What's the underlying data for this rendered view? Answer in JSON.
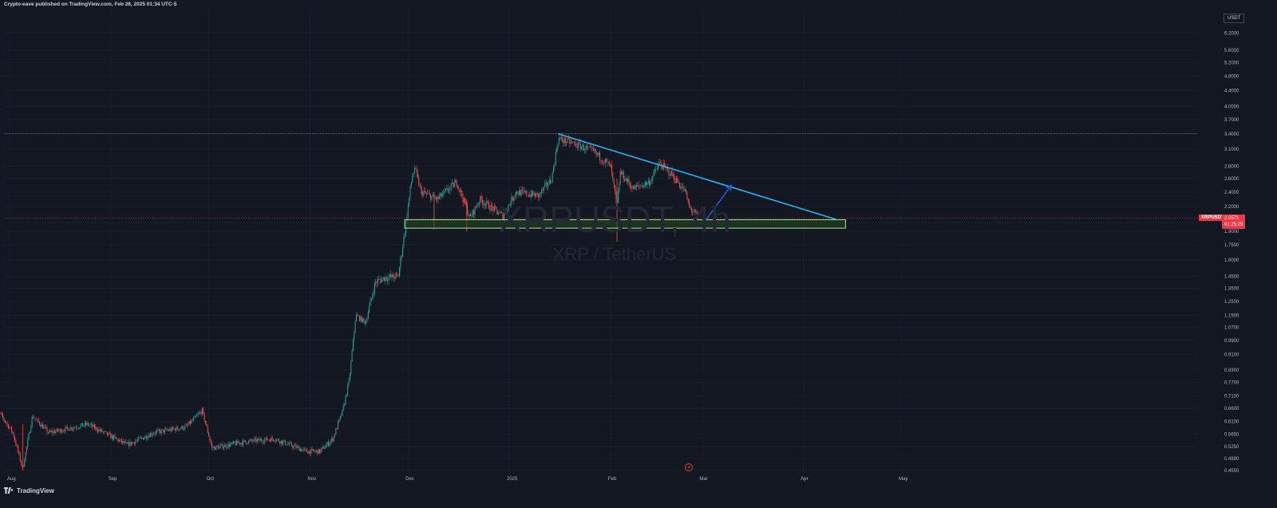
{
  "header": {
    "published_text": "Crypto-eave published on TradingView.com, Feb 28, 2025 01:34 UTC-5"
  },
  "watermark": {
    "symbol": "XRPUSDT, 4h",
    "name": "XRP / TetherUS"
  },
  "axis_unit": "USDT",
  "price_label": {
    "symbol": "XRPUSDT",
    "price": "2.0571",
    "countdown": "01:25:29"
  },
  "footer": {
    "brand": "TradingView"
  },
  "colors": {
    "background": "#131722",
    "grid": "#1e2230",
    "up": "#26a69a",
    "down": "#ef5350",
    "trendline": "#29b6f6",
    "arrow": "#2962ff",
    "zone_fill": "#1f4a1f",
    "zone_border": "#b5e48c",
    "current_price_line": "#f23645"
  },
  "icons": [
    "tradingview-logo-icon",
    "lightning-icon"
  ],
  "chart_data": {
    "type": "candlestick",
    "title": "XRPUSDT, 4h",
    "subtitle": "XRP / TetherUS",
    "interval": "4h",
    "y_scale": "log",
    "ylim": [
      0.455,
      6.4
    ],
    "x_ticks": [
      "Aug",
      "Sep",
      "Oct",
      "Nov",
      "Dec",
      "2025",
      "Feb",
      "Mar",
      "Apr",
      "May"
    ],
    "y_ticks": [
      "6.2000",
      "5.6000",
      "5.2000",
      "4.8000",
      "4.4000",
      "4.0000",
      "3.7000",
      "3.4000",
      "3.1000",
      "2.8000",
      "2.6000",
      "2.4000",
      "2.2000",
      "2.0000",
      "1.9000",
      "1.7500",
      "1.6000",
      "1.4500",
      "1.3500",
      "1.2500",
      "1.1500",
      "1.0700",
      "0.9900",
      "0.9100",
      "0.8300",
      "0.7700",
      "0.7100",
      "0.6600",
      "0.6100",
      "0.5650",
      "0.5250",
      "0.4890",
      "0.4550"
    ],
    "price_path": [
      {
        "date": "2024-07-27",
        "price": 0.6
      },
      {
        "date": "2024-07-29",
        "price": 0.64
      },
      {
        "date": "2024-08-02",
        "price": 0.57
      },
      {
        "date": "2024-08-05",
        "price": 0.46
      },
      {
        "date": "2024-08-08",
        "price": 0.63
      },
      {
        "date": "2024-08-13",
        "price": 0.57
      },
      {
        "date": "2024-08-25",
        "price": 0.6
      },
      {
        "date": "2024-09-06",
        "price": 0.53
      },
      {
        "date": "2024-09-14",
        "price": 0.57
      },
      {
        "date": "2024-09-24",
        "price": 0.59
      },
      {
        "date": "2024-09-29",
        "price": 0.65
      },
      {
        "date": "2024-10-02",
        "price": 0.52
      },
      {
        "date": "2024-10-12",
        "price": 0.54
      },
      {
        "date": "2024-10-21",
        "price": 0.55
      },
      {
        "date": "2024-10-31",
        "price": 0.51
      },
      {
        "date": "2024-11-04",
        "price": 0.51
      },
      {
        "date": "2024-11-08",
        "price": 0.55
      },
      {
        "date": "2024-11-11",
        "price": 0.65
      },
      {
        "date": "2024-11-13",
        "price": 0.78
      },
      {
        "date": "2024-11-15",
        "price": 1.15
      },
      {
        "date": "2024-11-18",
        "price": 1.1
      },
      {
        "date": "2024-11-21",
        "price": 1.4
      },
      {
        "date": "2024-11-24",
        "price": 1.44
      },
      {
        "date": "2024-11-28",
        "price": 1.45
      },
      {
        "date": "2024-11-30",
        "price": 1.9
      },
      {
        "date": "2024-12-02",
        "price": 2.55
      },
      {
        "date": "2024-12-03",
        "price": 2.78
      },
      {
        "date": "2024-12-05",
        "price": 2.4
      },
      {
        "date": "2024-12-10",
        "price": 2.3
      },
      {
        "date": "2024-12-16",
        "price": 2.55
      },
      {
        "date": "2024-12-20",
        "price": 2.05
      },
      {
        "date": "2024-12-23",
        "price": 2.3
      },
      {
        "date": "2024-12-30",
        "price": 2.08
      },
      {
        "date": "2025-01-03",
        "price": 2.4
      },
      {
        "date": "2025-01-10",
        "price": 2.35
      },
      {
        "date": "2025-01-14",
        "price": 2.6
      },
      {
        "date": "2025-01-16",
        "price": 3.3
      },
      {
        "date": "2025-01-21",
        "price": 3.2
      },
      {
        "date": "2025-01-27",
        "price": 3.05
      },
      {
        "date": "2025-02-01",
        "price": 2.8
      },
      {
        "date": "2025-02-03",
        "price": 2.2
      },
      {
        "date": "2025-02-04",
        "price": 2.7
      },
      {
        "date": "2025-02-08",
        "price": 2.45
      },
      {
        "date": "2025-02-13",
        "price": 2.55
      },
      {
        "date": "2025-02-16",
        "price": 2.85
      },
      {
        "date": "2025-02-20",
        "price": 2.65
      },
      {
        "date": "2025-02-24",
        "price": 2.4
      },
      {
        "date": "2025-02-25",
        "price": 2.2
      },
      {
        "date": "2025-02-28",
        "price": 2.06
      }
    ],
    "horizontal_level": 3.4,
    "current_price": 2.0571,
    "trendline": [
      {
        "date": "2025-01-16",
        "price": 3.4
      },
      {
        "date": "2025-04-11",
        "price": 2.04
      }
    ],
    "support_zone": {
      "from_date": "2024-11-30",
      "to_date": "2025-04-14",
      "low": 1.935,
      "high": 2.035
    },
    "projection_arrow": [
      {
        "date": "2025-03-02",
        "price": 2.02
      },
      {
        "date": "2025-03-10",
        "price": 2.5
      }
    ]
  }
}
